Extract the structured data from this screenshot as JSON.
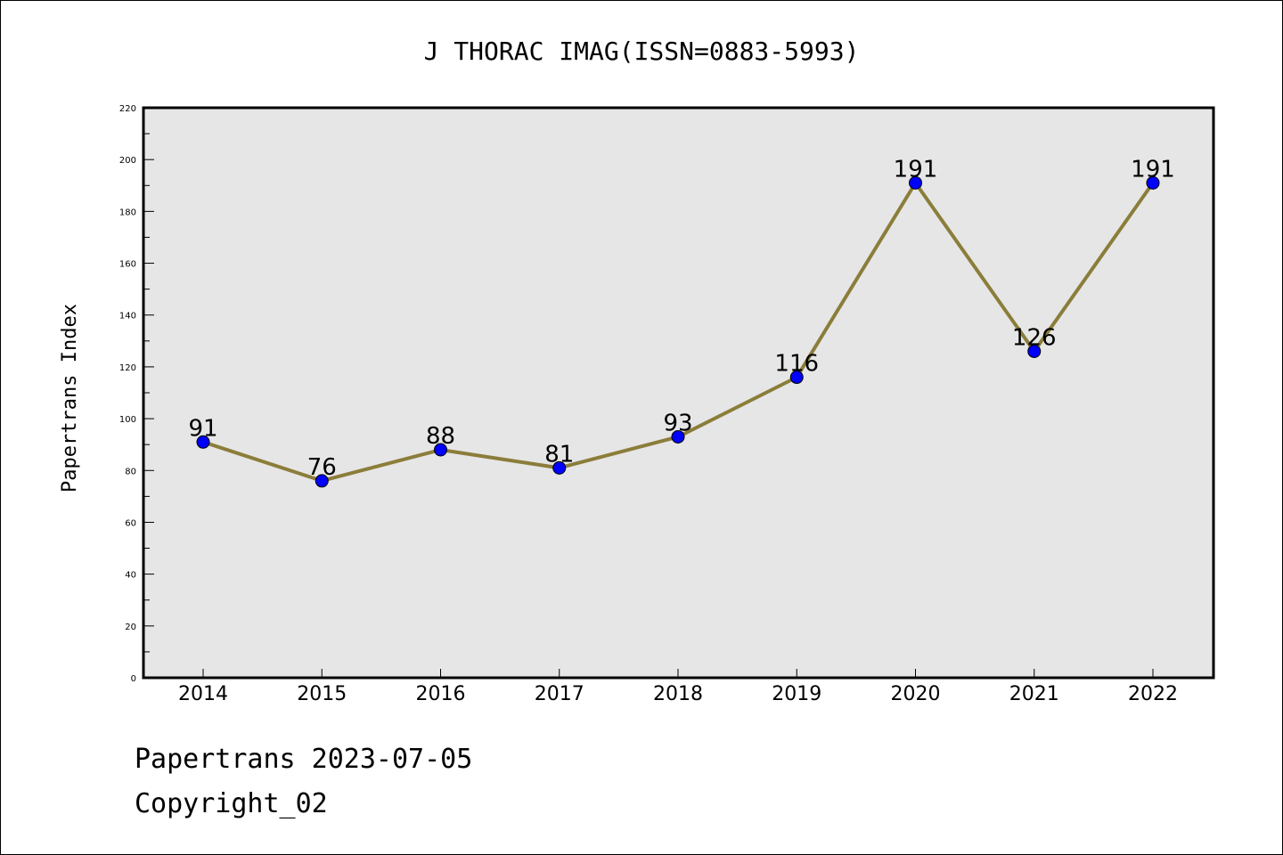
{
  "chart_data": {
    "type": "line",
    "title": "J THORAC IMAG(ISSN=0883-5993)",
    "xlabel": "",
    "ylabel": "Papertrans Index",
    "categories": [
      "2014",
      "2015",
      "2016",
      "2017",
      "2018",
      "2019",
      "2020",
      "2021",
      "2022"
    ],
    "values": [
      91,
      76,
      88,
      81,
      93,
      116,
      191,
      126,
      191
    ],
    "data_labels": [
      "91",
      "76",
      "88",
      "81",
      "93",
      "116",
      "191",
      "126",
      "191"
    ],
    "ylim": [
      0,
      220
    ],
    "yticks": [
      0,
      20,
      40,
      60,
      80,
      100,
      120,
      140,
      160,
      180,
      200,
      220
    ],
    "grid": false,
    "legend": "none",
    "colors": {
      "line": "#8B7D3A",
      "marker": "#0000FF",
      "plot_bg": "#E6E6E6"
    }
  },
  "footer": {
    "line1": "Papertrans 2023-07-05",
    "line2": "Copyright_02"
  }
}
